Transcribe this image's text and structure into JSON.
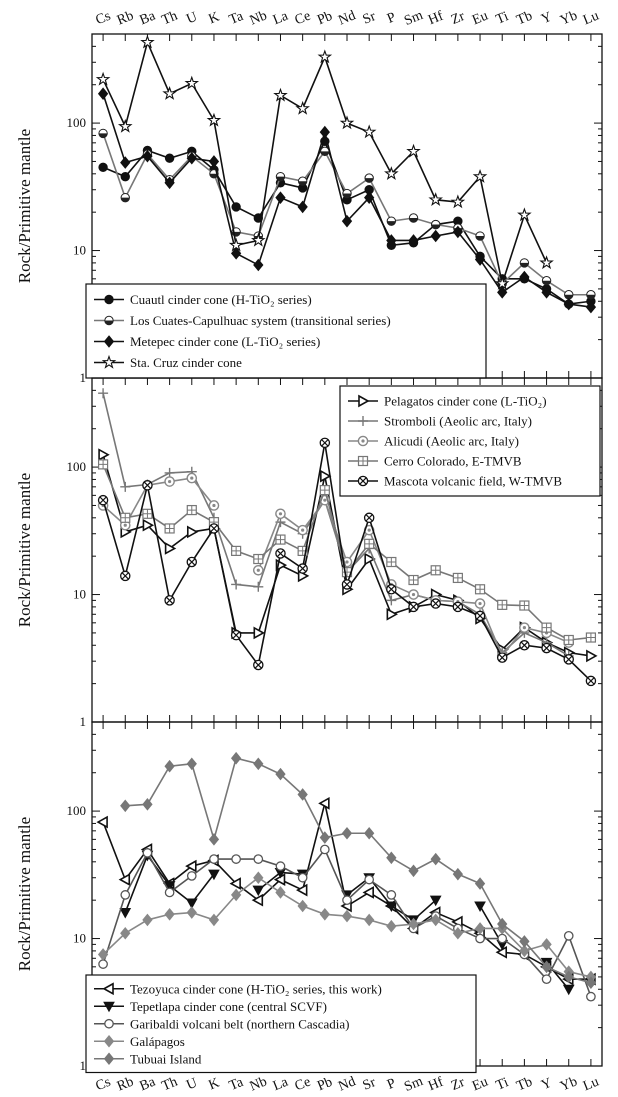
{
  "chart_data": [
    {
      "type": "line",
      "ylabel": "Rock/Primitive mantle",
      "yscale": "log",
      "ylim": [
        1,
        500
      ],
      "yticks": [
        1,
        10,
        100
      ],
      "categories": [
        "Cs",
        "Rb",
        "Ba",
        "Th",
        "U",
        "K",
        "Ta",
        "Nb",
        "La",
        "Ce",
        "Pb",
        "Nd",
        "Sr",
        "P",
        "Sm",
        "Hf",
        "Zr",
        "Eu",
        "Ti",
        "Tb",
        "Y",
        "Yb",
        "Lu"
      ],
      "legend_position": "bottom-left",
      "series": [
        {
          "name": "Cuautl cinder cone (H-TiO₂ series)",
          "color": "#111111",
          "marker": "circle",
          "values": [
            45,
            38,
            61,
            53,
            60,
            43,
            22,
            18,
            34,
            31,
            72,
            25,
            30,
            11,
            11.5,
            16,
            17,
            9,
            6,
            6,
            5,
            3.8,
            4
          ]
        },
        {
          "name": "Los Cuates-Capulhuac system (transitional series)",
          "color": "#777777",
          "marker": "half-circle",
          "values": [
            83,
            26,
            57,
            36,
            55,
            40,
            14,
            13,
            38,
            35,
            60,
            28,
            37,
            17,
            18,
            16,
            15,
            13,
            5.5,
            8,
            5.8,
            4.5,
            4.5
          ]
        },
        {
          "name": "Metepec cinder cone (L-TiO₂ series)",
          "color": "#111111",
          "marker": "diamond",
          "values": [
            170,
            49,
            55,
            34,
            53,
            50,
            9.5,
            7.7,
            26,
            22,
            85,
            17,
            26,
            12,
            12,
            13,
            14,
            8.5,
            4.7,
            6.2,
            4.7,
            3.8,
            3.6
          ]
        },
        {
          "name": "Sta. Cruz cinder cone",
          "color": "#111111",
          "marker": "star",
          "values": [
            220,
            94,
            430,
            170,
            205,
            105,
            11,
            12,
            165,
            130,
            330,
            100,
            85,
            40,
            60,
            25,
            24,
            38,
            5.5,
            19,
            8,
            null,
            null
          ]
        }
      ]
    },
    {
      "type": "line",
      "ylabel": "Rock/Primitive mantle",
      "yscale": "log",
      "ylim": [
        1,
        500
      ],
      "yticks": [
        1,
        10,
        100
      ],
      "categories": [
        "Cs",
        "Rb",
        "Ba",
        "Th",
        "U",
        "K",
        "Ta",
        "Nb",
        "La",
        "Ce",
        "Pb",
        "Nd",
        "Sr",
        "P",
        "Sm",
        "Hf",
        "Zr",
        "Eu",
        "Ti",
        "Tb",
        "Y",
        "Yb",
        "Lu"
      ],
      "legend_position": "top-right",
      "series": [
        {
          "name": "Pelagatos cinder cone (L-TiO₂)",
          "color": "#111111",
          "marker": "triangle-right",
          "values": [
            125,
            31,
            35,
            23,
            31,
            33,
            5,
            5,
            17,
            14,
            85,
            11,
            19,
            7,
            8,
            10,
            9,
            6.5,
            3.7,
            5.5,
            4.2,
            3.5,
            3.3
          ]
        },
        {
          "name": "Stromboli (Aeolic arc, Italy)",
          "color": "#777777",
          "marker": "plus",
          "values": [
            380,
            70,
            73,
            90,
            92,
            40,
            12,
            11.5,
            37,
            30,
            55,
            15,
            23,
            9,
            10,
            9,
            8.8,
            7,
            3.5,
            5,
            4.2,
            3.3,
            null
          ]
        },
        {
          "name": "Alicudi  (Aeolic arc, Italy)",
          "color": "#888888",
          "marker": "circle-dot",
          "values": [
            50,
            35,
            72,
            77,
            82,
            50,
            null,
            15.5,
            43,
            32,
            55,
            18,
            32,
            12,
            10,
            9,
            8.8,
            8.5,
            3.3,
            5.5,
            5,
            4.2,
            null
          ]
        },
        {
          "name": "Cerro Colorado, E-TMVB",
          "color": "#777777",
          "marker": "square-plus",
          "values": [
            105,
            40,
            43,
            33,
            46,
            37,
            22,
            19,
            27,
            22,
            66,
            15,
            25,
            18,
            13,
            15.5,
            13.5,
            11,
            8.3,
            8.2,
            5.5,
            4.4,
            4.6
          ]
        },
        {
          "name": "Mascota volcanic field, W-TMVB",
          "color": "#111111",
          "marker": "circle-x",
          "values": [
            55,
            14,
            72,
            9,
            18,
            33,
            4.8,
            2.8,
            21,
            16,
            155,
            12,
            40,
            11,
            8,
            8.5,
            8,
            6.8,
            3.2,
            4,
            3.8,
            3.1,
            2.1
          ]
        }
      ]
    },
    {
      "type": "line",
      "ylabel": "Rock/Primitive mantle",
      "yscale": "log",
      "ylim": [
        1,
        500
      ],
      "yticks": [
        1,
        10,
        100
      ],
      "categories": [
        "Cs",
        "Rb",
        "Ba",
        "Th",
        "U",
        "K",
        "Ta",
        "Nb",
        "La",
        "Ce",
        "Pb",
        "Nd",
        "Sr",
        "P",
        "Sm",
        "Hf",
        "Zr",
        "Eu",
        "Ti",
        "Tb",
        "Y",
        "Yb",
        "Lu"
      ],
      "legend_position": "bottom-left",
      "series": [
        {
          "name": "Tezoyuca cinder cone (H-TiO₂ series, this work)",
          "color": "#111111",
          "marker": "triangle-left",
          "values": [
            82,
            29,
            50,
            27,
            37,
            41,
            27,
            20,
            29,
            24,
            115,
            18,
            23,
            18,
            12,
            16,
            13.5,
            11,
            7.8,
            7.5,
            6,
            4.8,
            4.8
          ]
        },
        {
          "name": "Tepetlapa cinder cone (central SCVF)",
          "color": "#111111",
          "marker": "triangle-down",
          "values": [
            null,
            16,
            45,
            26,
            19,
            32,
            null,
            24,
            33,
            32,
            null,
            22,
            30,
            18,
            14,
            20,
            null,
            18,
            9,
            null,
            6.5,
            4,
            null
          ]
        },
        {
          "name": "Garibaldi volcani belt (northern Cascadia)",
          "color": "#555555",
          "marker": "circle-open",
          "values": [
            6.3,
            22,
            47,
            23,
            31,
            42,
            42,
            42,
            37,
            30,
            50,
            20,
            29,
            22,
            12,
            15,
            12,
            10,
            10,
            7.5,
            4.8,
            10.5,
            3.5
          ]
        },
        {
          "name": "Galápagos",
          "color": "#888888",
          "marker": "diamond",
          "values": [
            7.5,
            11,
            14,
            15.5,
            16,
            14,
            22,
            30,
            23,
            18,
            15.5,
            15,
            14,
            12.5,
            13,
            14,
            11,
            12,
            12,
            8,
            9,
            5.5,
            5
          ]
        },
        {
          "name": "Tubuai Island",
          "color": "#777777",
          "marker": "diamond",
          "values": [
            null,
            110,
            113,
            225,
            235,
            60,
            260,
            235,
            195,
            135,
            62,
            67,
            67,
            43,
            34,
            42,
            32,
            27,
            13,
            9.5,
            6,
            5,
            4.5
          ]
        }
      ]
    }
  ]
}
